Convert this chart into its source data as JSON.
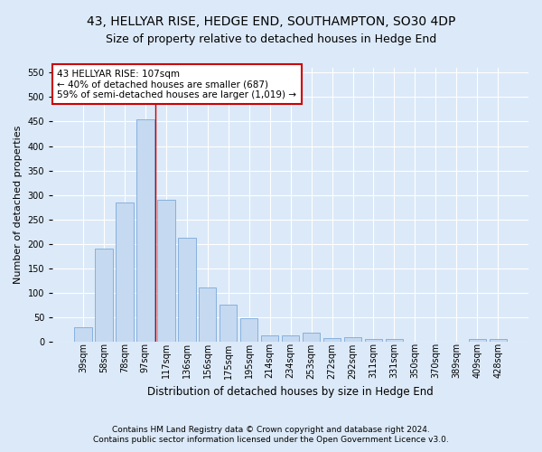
{
  "title": "43, HELLYAR RISE, HEDGE END, SOUTHAMPTON, SO30 4DP",
  "subtitle": "Size of property relative to detached houses in Hedge End",
  "xlabel": "Distribution of detached houses by size in Hedge End",
  "ylabel": "Number of detached properties",
  "categories": [
    "39sqm",
    "58sqm",
    "78sqm",
    "97sqm",
    "117sqm",
    "136sqm",
    "156sqm",
    "175sqm",
    "195sqm",
    "214sqm",
    "234sqm",
    "253sqm",
    "272sqm",
    "292sqm",
    "311sqm",
    "331sqm",
    "350sqm",
    "370sqm",
    "389sqm",
    "409sqm",
    "428sqm"
  ],
  "values": [
    30,
    190,
    285,
    455,
    290,
    213,
    110,
    75,
    47,
    12,
    12,
    18,
    7,
    8,
    5,
    5,
    0,
    0,
    0,
    5,
    5
  ],
  "bar_color": "#c5d9f0",
  "bar_edge_color": "#7aaadb",
  "annotation_text": "43 HELLYAR RISE: 107sqm\n← 40% of detached houses are smaller (687)\n59% of semi-detached houses are larger (1,019) →",
  "annotation_box_color": "#ffffff",
  "annotation_box_edge": "#cc0000",
  "ylim": [
    0,
    560
  ],
  "yticks": [
    0,
    50,
    100,
    150,
    200,
    250,
    300,
    350,
    400,
    450,
    500,
    550
  ],
  "footer_line1": "Contains HM Land Registry data © Crown copyright and database right 2024.",
  "footer_line2": "Contains public sector information licensed under the Open Government Licence v3.0.",
  "background_color": "#dce9f8",
  "plot_bg_color": "#dce9f8",
  "grid_color": "#ffffff",
  "title_fontsize": 10,
  "subtitle_fontsize": 9,
  "xlabel_fontsize": 8.5,
  "ylabel_fontsize": 8,
  "tick_fontsize": 7,
  "annotation_fontsize": 7.5,
  "footer_fontsize": 6.5
}
